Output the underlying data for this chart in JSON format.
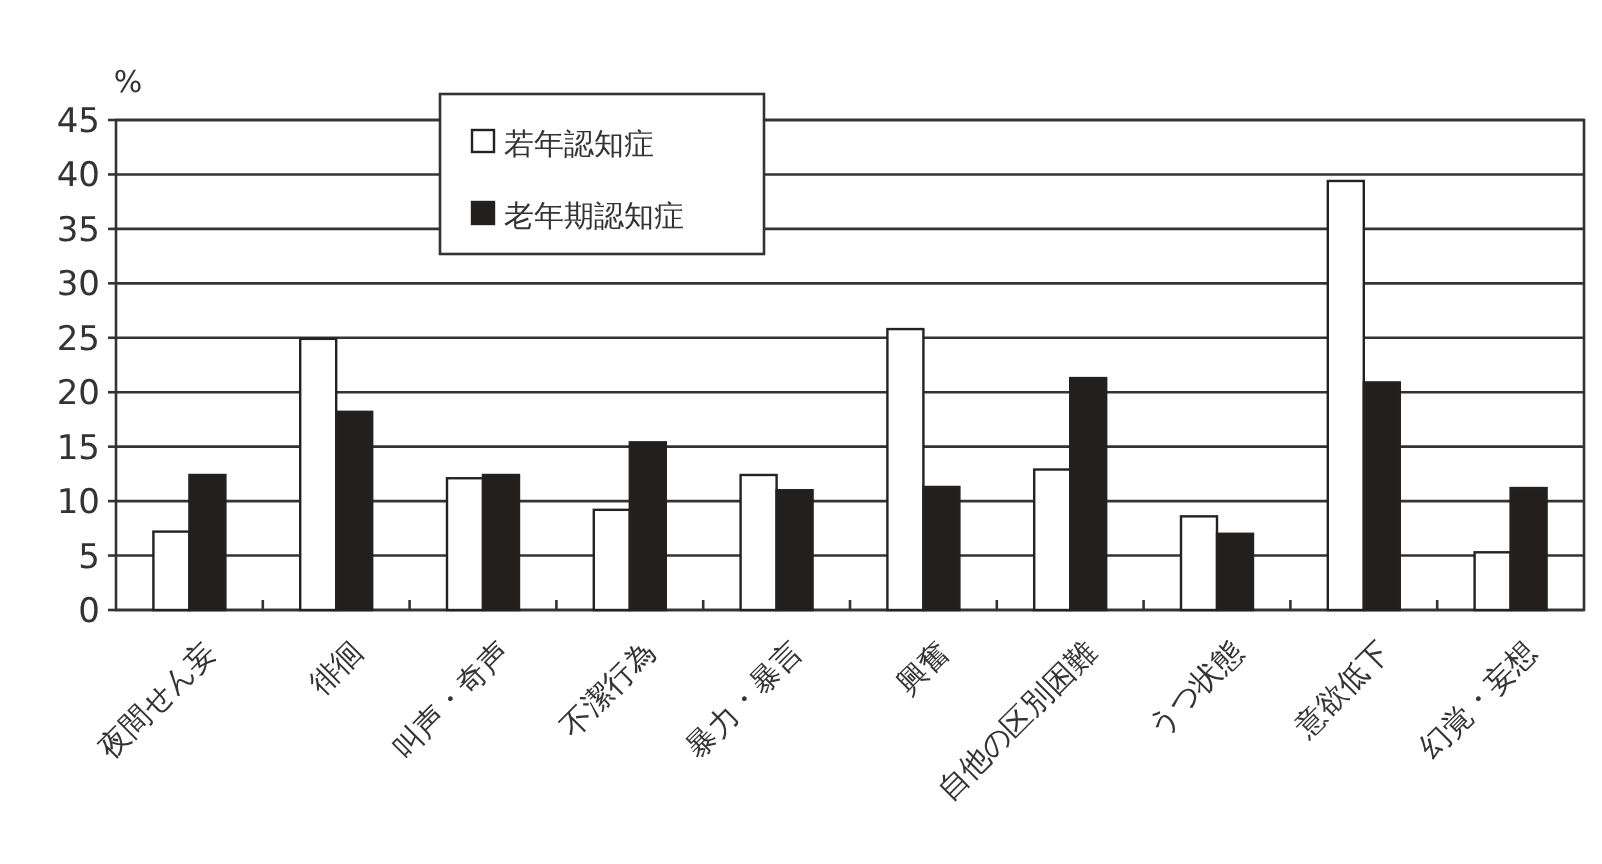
{
  "chart_data": {
    "type": "bar",
    "ylabel": "%",
    "categories": [
      "夜間せん妄",
      "徘徊",
      "叫声・奇声",
      "不潔行為",
      "暴力・暴言",
      "興奮",
      "自他の区別困難",
      "うつ状態",
      "意欲低下",
      "幻覚・妄想"
    ],
    "series": [
      {
        "name": "若年認知症",
        "color": "#ffffff",
        "values": [
          7.2,
          24.9,
          12.1,
          9.2,
          12.4,
          25.8,
          12.9,
          8.6,
          39.4,
          5.3
        ]
      },
      {
        "name": "老年期認知症",
        "color": "#231f1c",
        "values": [
          12.4,
          18.2,
          12.4,
          15.4,
          11.0,
          11.3,
          21.3,
          7.0,
          20.9,
          11.2
        ]
      }
    ],
    "ylim": [
      0,
      45
    ],
    "yticks": [
      0,
      5,
      10,
      15,
      20,
      25,
      30,
      35,
      40,
      45
    ],
    "grid": "y",
    "legend": "top left"
  }
}
